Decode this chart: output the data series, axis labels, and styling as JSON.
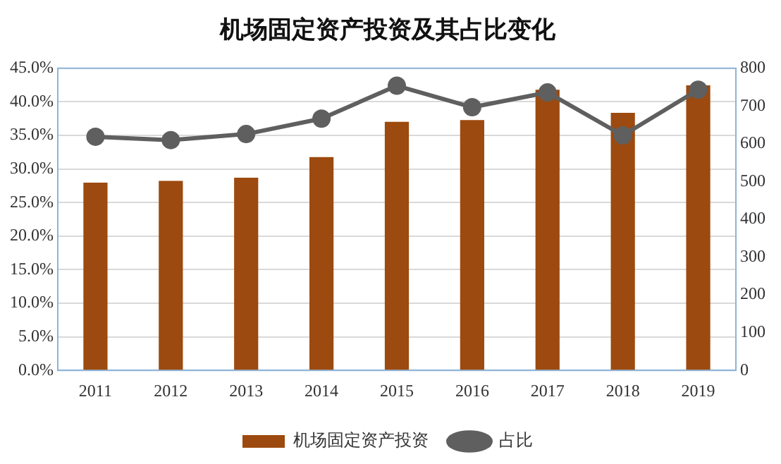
{
  "chart_data": {
    "type": "bar",
    "title": "机场固定资产投资及其占比变化",
    "categories": [
      "2011",
      "2012",
      "2013",
      "2014",
      "2015",
      "2016",
      "2017",
      "2018",
      "2019"
    ],
    "series": [
      {
        "name": "机场固定资产投资",
        "axis": "y2",
        "color": "#9c4a0f",
        "values": [
          497,
          502,
          510,
          565,
          658,
          663,
          743,
          682,
          755
        ]
      },
      {
        "name": "占比",
        "type": "line",
        "axis": "y",
        "color": "#5f5f5f",
        "marker": "circle",
        "values": [
          34.8,
          34.3,
          35.2,
          37.5,
          42.4,
          39.2,
          41.4,
          35.0,
          41.8
        ]
      }
    ],
    "ylim": [
      0,
      45
    ],
    "yticks": [
      {
        "value": 0,
        "label": "0.0%"
      },
      {
        "value": 5,
        "label": "5.0%"
      },
      {
        "value": 10,
        "label": "10.0%"
      },
      {
        "value": 15,
        "label": "15.0%"
      },
      {
        "value": 20,
        "label": "20.0%"
      },
      {
        "value": 25,
        "label": "25.0%"
      },
      {
        "value": 30,
        "label": "30.0%"
      },
      {
        "value": 35,
        "label": "35.0%"
      },
      {
        "value": 40,
        "label": "40.0%"
      },
      {
        "value": 45,
        "label": "45.0%"
      }
    ],
    "y2lim": [
      0,
      800
    ],
    "y2ticks": [
      0,
      100,
      200,
      300,
      400,
      500,
      600,
      700,
      800
    ],
    "grid": "y",
    "legend": "bottom"
  }
}
